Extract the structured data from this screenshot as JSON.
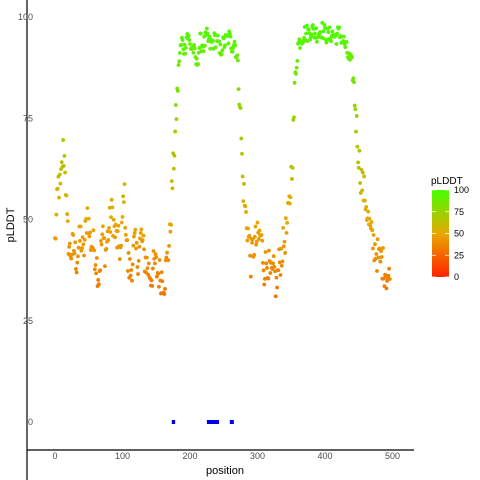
{
  "chart_data": {
    "type": "scatter",
    "xlabel": "position",
    "ylabel": "pLDDT",
    "xlim": [
      -10,
      520
    ],
    "ylim": [
      -5,
      101
    ],
    "x_ticks": [
      0,
      100,
      200,
      300,
      400,
      500
    ],
    "y_ticks": [
      0,
      25,
      50,
      75,
      100
    ],
    "grid": false,
    "legend": {
      "title": "pLDDT",
      "position": "right",
      "ticks": [
        0,
        25,
        50,
        75,
        100
      ],
      "colors": [
        "#ff2200",
        "#e8a800",
        "#44ff00"
      ]
    },
    "series": [
      {
        "kind": "gradient-points",
        "anchors": [
          [
            0,
            44
          ],
          [
            5,
            59
          ],
          [
            8,
            57
          ],
          [
            12,
            67
          ],
          [
            15,
            64
          ],
          [
            18,
            48
          ],
          [
            22,
            42
          ],
          [
            28,
            43
          ],
          [
            32,
            40
          ],
          [
            38,
            46
          ],
          [
            42,
            41
          ],
          [
            48,
            52
          ],
          [
            52,
            45
          ],
          [
            58,
            43
          ],
          [
            62,
            39
          ],
          [
            65,
            36
          ],
          [
            70,
            46
          ],
          [
            75,
            42
          ],
          [
            80,
            48
          ],
          [
            85,
            52
          ],
          [
            88,
            47
          ],
          [
            92,
            45
          ],
          [
            98,
            42
          ],
          [
            102,
            58
          ],
          [
            108,
            39
          ],
          [
            112,
            37
          ],
          [
            118,
            44
          ],
          [
            122,
            40
          ],
          [
            128,
            46
          ],
          [
            132,
            41
          ],
          [
            138,
            38
          ],
          [
            142,
            36
          ],
          [
            148,
            39
          ],
          [
            152,
            37
          ],
          [
            158,
            36
          ],
          [
            162,
            35
          ],
          [
            166,
            40
          ],
          [
            170,
            45
          ],
          [
            173,
            56
          ],
          [
            176,
            65
          ],
          [
            180,
            77
          ],
          [
            184,
            90
          ],
          [
            188,
            94
          ],
          [
            192,
            92
          ],
          [
            196,
            96
          ],
          [
            200,
            93
          ],
          [
            205,
            92
          ],
          [
            210,
            88
          ],
          [
            215,
            94
          ],
          [
            220,
            93
          ],
          [
            225,
            95
          ],
          [
            230,
            93
          ],
          [
            235,
            94
          ],
          [
            240,
            95
          ],
          [
            244,
            91
          ],
          [
            248,
            93
          ],
          [
            253,
            94
          ],
          [
            258,
            95
          ],
          [
            262,
            93
          ],
          [
            266,
            94
          ],
          [
            270,
            90
          ],
          [
            274,
            80
          ],
          [
            278,
            60
          ],
          [
            282,
            52
          ],
          [
            286,
            47
          ],
          [
            290,
            40
          ],
          [
            295,
            44
          ],
          [
            300,
            45
          ],
          [
            305,
            46
          ],
          [
            310,
            38
          ],
          [
            315,
            40
          ],
          [
            320,
            35
          ],
          [
            325,
            37
          ],
          [
            328,
            33
          ],
          [
            332,
            39
          ],
          [
            336,
            42
          ],
          [
            340,
            45
          ],
          [
            344,
            48
          ],
          [
            348,
            55
          ],
          [
            352,
            67
          ],
          [
            356,
            85
          ],
          [
            360,
            93
          ],
          [
            365,
            95
          ],
          [
            370,
            96
          ],
          [
            375,
            96
          ],
          [
            380,
            97
          ],
          [
            385,
            96
          ],
          [
            390,
            96
          ],
          [
            395,
            97
          ],
          [
            400,
            96
          ],
          [
            405,
            95
          ],
          [
            410,
            96
          ],
          [
            415,
            95
          ],
          [
            420,
            96
          ],
          [
            425,
            95
          ],
          [
            430,
            93
          ],
          [
            435,
            90
          ],
          [
            440,
            88
          ],
          [
            444,
            80
          ],
          [
            448,
            70
          ],
          [
            452,
            62
          ],
          [
            456,
            58
          ],
          [
            460,
            55
          ],
          [
            464,
            50
          ],
          [
            468,
            46
          ],
          [
            472,
            44
          ],
          [
            476,
            42
          ],
          [
            480,
            40
          ],
          [
            484,
            40
          ],
          [
            488,
            38
          ],
          [
            492,
            36
          ],
          [
            496,
            35
          ]
        ]
      },
      {
        "kind": "markers",
        "name": "",
        "y": 0,
        "x_ranges": [
          [
            173,
            178
          ],
          [
            225,
            243
          ],
          [
            259,
            265
          ]
        ],
        "color": "#0000ee"
      }
    ]
  }
}
